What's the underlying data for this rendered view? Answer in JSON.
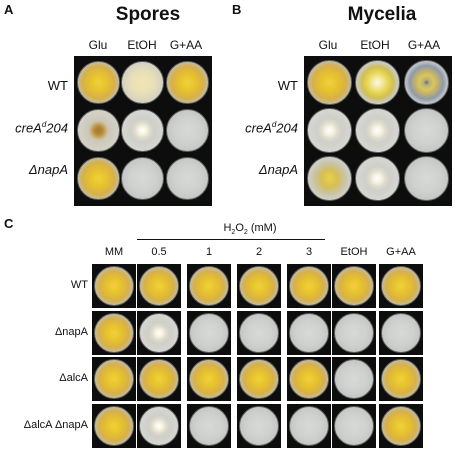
{
  "panel_a": {
    "letter": "A",
    "title": "Spores",
    "columns": [
      "Glu",
      "EtOH",
      "G+AA"
    ],
    "rows": [
      {
        "label": "WT",
        "italic": false
      },
      {
        "label": "creA",
        "sup": "d",
        "suffix": "204",
        "italic": true
      },
      {
        "label": "ΔnapA",
        "italic": true
      }
    ],
    "plates": [
      [
        "yellow-large",
        "pale-large",
        "yellow-large"
      ],
      [
        "brown-small",
        "white-small",
        "empty"
      ],
      [
        "yellow-large",
        "empty",
        "empty"
      ]
    ]
  },
  "panel_b": {
    "letter": "B",
    "title": "Mycelia",
    "columns": [
      "Glu",
      "EtOH",
      "G+AA"
    ],
    "rows": [
      {
        "label": "WT",
        "italic": false
      },
      {
        "label": "creA",
        "sup": "d",
        "suffix": "204",
        "italic": true
      },
      {
        "label": "ΔnapA",
        "italic": true
      }
    ],
    "plates": [
      [
        "yellow-large",
        "yellow-ring",
        "blue-ring"
      ],
      [
        "white-small",
        "white-small",
        "empty"
      ],
      [
        "yellow-medium",
        "white-small",
        "empty"
      ]
    ]
  },
  "panel_c": {
    "letter": "C",
    "group_label_prefix": "H",
    "group_label_sub": "2",
    "group_label_mid": "O",
    "group_label_sub2": "2",
    "group_label_suffix": " (mM)",
    "columns": [
      "MM",
      "0.5",
      "1",
      "2",
      "3",
      "EtOH",
      "G+AA"
    ],
    "rows": [
      "WT",
      "ΔnapA",
      "ΔalcA",
      "ΔalcA ΔnapA"
    ],
    "plates": [
      [
        "yellow-large",
        "yellow-large",
        "yellow-large",
        "yellow-large",
        "yellow-large",
        "yellow-large",
        "yellow-large"
      ],
      [
        "yellow-large",
        "white-small",
        "empty",
        "empty",
        "empty",
        "empty",
        "empty"
      ],
      [
        "yellow-large",
        "yellow-large",
        "yellow-large",
        "yellow-large",
        "yellow-large",
        "empty",
        "yellow-large"
      ],
      [
        "yellow-large",
        "white-small",
        "empty",
        "empty",
        "empty",
        "empty",
        "yellow-large"
      ]
    ]
  }
}
